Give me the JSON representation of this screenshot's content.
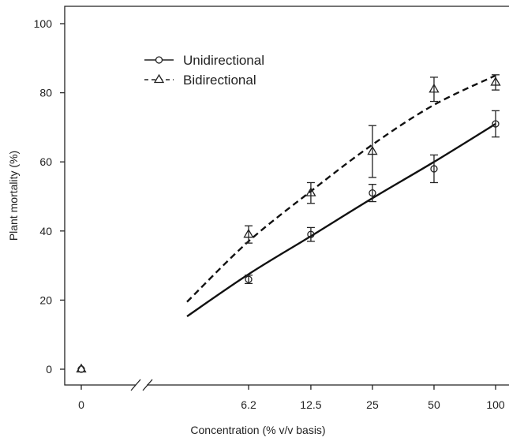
{
  "chart_data": {
    "type": "line",
    "title": "",
    "xlabel": "Concentration (% v/v basis)",
    "ylabel": "Plant mortality (%)",
    "x_ticks": [
      "0",
      "6.2",
      "12.5",
      "25",
      "50",
      "100"
    ],
    "x_scale": "log2 with axis break between 0 and 6.2",
    "ylim": [
      0,
      100
    ],
    "y_ticks": [
      0,
      20,
      40,
      60,
      80,
      100
    ],
    "grid": false,
    "legend_position": "top-left",
    "series": [
      {
        "name": "Unidirectional",
        "marker": "circle",
        "line_style": "solid",
        "points": [
          {
            "x": 0,
            "y": 0,
            "err": 0
          },
          {
            "x": 6.2,
            "y": 26,
            "err": 1.2
          },
          {
            "x": 12.5,
            "y": 39,
            "err": 2
          },
          {
            "x": 25,
            "y": 51,
            "err": 2.5
          },
          {
            "x": 50,
            "y": 58,
            "err": 4
          },
          {
            "x": 100,
            "y": 71,
            "err": 3.8
          }
        ],
        "fit": [
          {
            "x": 3.1,
            "y": 15.3
          },
          {
            "x": 6.2,
            "y": 27.5
          },
          {
            "x": 12.5,
            "y": 38.5
          },
          {
            "x": 25,
            "y": 49.5
          },
          {
            "x": 50,
            "y": 60
          },
          {
            "x": 100,
            "y": 71
          }
        ]
      },
      {
        "name": "Bidirectional",
        "marker": "triangle",
        "line_style": "dashed",
        "points": [
          {
            "x": 0,
            "y": 0,
            "err": 0
          },
          {
            "x": 6.2,
            "y": 39,
            "err": 2.5
          },
          {
            "x": 12.5,
            "y": 51,
            "err": 3
          },
          {
            "x": 25,
            "y": 63,
            "err": 7.5
          },
          {
            "x": 50,
            "y": 81,
            "err": 3.5
          },
          {
            "x": 100,
            "y": 83,
            "err": 2.2
          }
        ],
        "fit": [
          {
            "x": 3.1,
            "y": 19.5
          },
          {
            "x": 6.2,
            "y": 37
          },
          {
            "x": 12.5,
            "y": 51.5
          },
          {
            "x": 25,
            "y": 65
          },
          {
            "x": 50,
            "y": 76.5
          },
          {
            "x": 100,
            "y": 85
          }
        ]
      }
    ]
  }
}
